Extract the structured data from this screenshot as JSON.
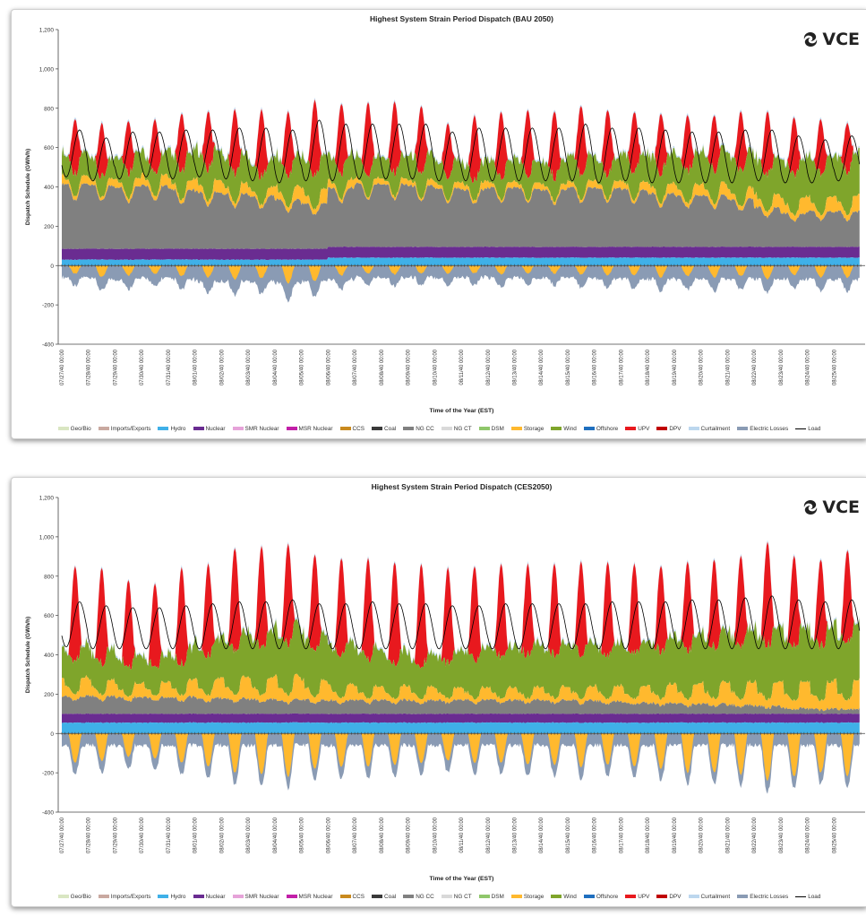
{
  "colors": {
    "Geo/Bio": "#d9e6c2",
    "Imports/Exports": "#c9a9a0",
    "Hydro": "#3fb0e8",
    "Nuclear": "#6a2c91",
    "SMR Nuclear": "#e6a3d9",
    "MSR Nuclear": "#c21fa8",
    "CCS": "#c98a1e",
    "Coal": "#3a3a3a",
    "NG CC": "#808080",
    "NG CT": "#d9d9d9",
    "DSM": "#8fc76b",
    "Storage": "#ffb92e",
    "Wind": "#7fa52b",
    "Offshore": "#1f6fbf",
    "UPV": "#e8191e",
    "DPV": "#c00000",
    "Curtailment": "#bcd7ee",
    "Electric Losses": "#8a9bb4",
    "Load": "#000000"
  },
  "logo": {
    "text": "VCE",
    "icon": "swirl-icon"
  },
  "chart_data": [
    {
      "type": "area",
      "title": "Highest System Strain Period Dispatch (BAU 2050)",
      "xlabel": "Time of the Year (EST)",
      "ylabel": "Dispatch Schedule (GWh/h)",
      "ylim": [
        -400,
        1200
      ],
      "yticks": [
        "-400",
        "-200",
        "0",
        "200",
        "400",
        "600",
        "800",
        "1,000",
        "1,200"
      ],
      "x": [
        "07/27/40 00:00",
        "07/28/40 00:00",
        "07/29/40 00:00",
        "07/30/40 00:00",
        "07/31/40 00:00",
        "08/01/40 00:00",
        "08/02/40 00:00",
        "08/03/40 00:00",
        "08/04/40 00:00",
        "08/05/40 00:00",
        "08/06/40 00:00",
        "08/07/40 00:00",
        "08/08/40 00:00",
        "08/09/40 00:00",
        "08/10/40 00:00",
        "08/11/40 00:00",
        "08/12/40 00:00",
        "08/13/40 00:00",
        "08/14/40 00:00",
        "08/15/40 00:00",
        "08/16/40 00:00",
        "08/17/40 00:00",
        "08/18/40 00:00",
        "08/19/40 00:00",
        "08/20/40 00:00",
        "08/21/40 00:00",
        "08/22/40 00:00",
        "08/23/40 00:00",
        "08/24/40 00:00",
        "08/25/40 00:00"
      ],
      "daily": {
        "hydro": [
          30,
          30,
          30,
          30,
          30,
          30,
          30,
          30,
          30,
          30,
          40,
          40,
          40,
          40,
          40,
          40,
          40,
          40,
          40,
          40,
          40,
          40,
          40,
          40,
          40,
          40,
          40,
          40,
          40,
          40
        ],
        "nuclear": [
          55,
          55,
          55,
          55,
          55,
          55,
          55,
          55,
          55,
          55,
          55,
          55,
          55,
          55,
          55,
          55,
          55,
          55,
          55,
          55,
          55,
          55,
          55,
          55,
          55,
          55,
          55,
          55,
          55,
          55
        ],
        "ngcc": [
          330,
          320,
          315,
          320,
          300,
          290,
          280,
          270,
          250,
          230,
          300,
          320,
          320,
          310,
          300,
          290,
          300,
          300,
          290,
          300,
          300,
          290,
          270,
          260,
          260,
          240,
          200,
          170,
          180,
          180
        ],
        "wind": [
          120,
          100,
          130,
          110,
          140,
          160,
          150,
          140,
          160,
          170,
          130,
          110,
          120,
          130,
          120,
          100,
          110,
          120,
          120,
          130,
          120,
          140,
          150,
          160,
          170,
          180,
          190,
          200,
          210,
          220
        ],
        "storage_low": [
          30,
          25,
          30,
          40,
          35,
          45,
          40,
          30,
          50,
          55,
          30,
          20,
          20,
          20,
          20,
          25,
          20,
          20,
          20,
          25,
          25,
          30,
          35,
          40,
          45,
          40,
          50,
          60,
          55,
          60
        ],
        "solar_peak": [
          740,
          720,
          730,
          740,
          770,
          780,
          790,
          790,
          780,
          840,
          820,
          830,
          830,
          810,
          720,
          760,
          780,
          790,
          780,
          810,
          790,
          780,
          770,
          760,
          760,
          780,
          780,
          750,
          740,
          720
        ],
        "load_peak": [
          690,
          650,
          680,
          680,
          690,
          690,
          700,
          700,
          690,
          740,
          720,
          720,
          720,
          720,
          680,
          700,
          700,
          700,
          700,
          720,
          700,
          700,
          690,
          680,
          680,
          690,
          690,
          660,
          640,
          660
        ],
        "load_min": [
          450,
          430,
          440,
          450,
          440,
          450,
          440,
          430,
          420,
          430,
          430,
          440,
          440,
          440,
          430,
          430,
          430,
          430,
          430,
          430,
          420,
          430,
          420,
          420,
          420,
          420,
          430,
          420,
          420,
          430
        ],
        "storage_charge": [
          -40,
          -60,
          -50,
          -45,
          -55,
          -60,
          -70,
          -65,
          -90,
          -80,
          -50,
          -40,
          -45,
          -40,
          -40,
          -40,
          -45,
          -40,
          -40,
          -45,
          -50,
          -50,
          -60,
          -55,
          -60,
          -55,
          -70,
          -50,
          -60,
          -60
        ],
        "losses": [
          -60,
          -70,
          -70,
          -65,
          -70,
          -80,
          -80,
          -80,
          -90,
          -80,
          -70,
          -60,
          -60,
          -60,
          -60,
          -60,
          -65,
          -60,
          -60,
          -65,
          -65,
          -70,
          -70,
          -70,
          -70,
          -70,
          -70,
          -70,
          -70,
          -70
        ]
      }
    },
    {
      "type": "area",
      "title": "Highest System Strain Period Dispatch (CES2050)",
      "xlabel": "Time of the Year (EST)",
      "ylabel": "Dispatch Schedule (GWh/h)",
      "ylim": [
        -400,
        1200
      ],
      "yticks": [
        "-400",
        "-200",
        "0",
        "200",
        "400",
        "600",
        "800",
        "1,000",
        "1,200"
      ],
      "x": [
        "07/27/40 00:00",
        "07/28/40 00:00",
        "07/29/40 00:00",
        "07/30/40 00:00",
        "07/31/40 00:00",
        "08/01/40 00:00",
        "08/02/40 00:00",
        "08/03/40 00:00",
        "08/04/40 00:00",
        "08/05/40 00:00",
        "08/06/40 00:00",
        "08/07/40 00:00",
        "08/08/40 00:00",
        "08/09/40 00:00",
        "08/10/40 00:00",
        "08/11/40 00:00",
        "08/12/40 00:00",
        "08/13/40 00:00",
        "08/14/40 00:00",
        "08/15/40 00:00",
        "08/16/40 00:00",
        "08/17/40 00:00",
        "08/18/40 00:00",
        "08/19/40 00:00",
        "08/20/40 00:00",
        "08/21/40 00:00",
        "08/22/40 00:00",
        "08/23/40 00:00",
        "08/24/40 00:00",
        "08/25/40 00:00"
      ],
      "daily": {
        "hydro": [
          55,
          55,
          55,
          55,
          55,
          55,
          55,
          55,
          55,
          55,
          55,
          55,
          55,
          55,
          55,
          55,
          55,
          55,
          55,
          55,
          55,
          55,
          55,
          55,
          55,
          55,
          55,
          55,
          55,
          55
        ],
        "nuclear": [
          45,
          45,
          45,
          45,
          45,
          45,
          45,
          45,
          45,
          45,
          45,
          45,
          45,
          45,
          45,
          45,
          45,
          45,
          45,
          45,
          45,
          45,
          45,
          45,
          45,
          45,
          45,
          45,
          45,
          45
        ],
        "ngcc": [
          90,
          90,
          85,
          85,
          85,
          80,
          80,
          75,
          70,
          70,
          70,
          70,
          70,
          70,
          70,
          70,
          70,
          70,
          70,
          70,
          65,
          60,
          55,
          50,
          50,
          45,
          40,
          30,
          25,
          25
        ],
        "wind": [
          170,
          160,
          150,
          140,
          160,
          200,
          230,
          240,
          260,
          240,
          220,
          200,
          180,
          170,
          180,
          200,
          210,
          220,
          220,
          230,
          220,
          230,
          240,
          250,
          260,
          270,
          280,
          280,
          280,
          290
        ],
        "storage_low": [
          70,
          60,
          50,
          55,
          60,
          70,
          80,
          80,
          90,
          75,
          60,
          50,
          50,
          50,
          45,
          45,
          45,
          45,
          50,
          50,
          55,
          60,
          70,
          75,
          80,
          85,
          90,
          100,
          100,
          110
        ],
        "solar_peak": [
          850,
          840,
          780,
          760,
          840,
          860,
          940,
          950,
          960,
          910,
          890,
          890,
          870,
          860,
          840,
          850,
          860,
          860,
          860,
          870,
          870,
          860,
          850,
          870,
          880,
          900,
          970,
          900,
          880,
          930
        ],
        "load_peak": [
          670,
          650,
          640,
          640,
          650,
          660,
          670,
          670,
          680,
          660,
          660,
          670,
          660,
          660,
          650,
          650,
          660,
          660,
          660,
          660,
          670,
          670,
          670,
          680,
          680,
          690,
          700,
          680,
          670,
          680
        ],
        "load_min": [
          440,
          430,
          430,
          430,
          430,
          430,
          430,
          430,
          430,
          430,
          430,
          430,
          430,
          430,
          430,
          430,
          430,
          430,
          430,
          430,
          430,
          430,
          430,
          430,
          430,
          430,
          430,
          430,
          430,
          430
        ],
        "storage_charge": [
          -150,
          -140,
          -120,
          -130,
          -150,
          -170,
          -200,
          -210,
          -220,
          -180,
          -170,
          -170,
          -160,
          -150,
          -140,
          -150,
          -150,
          -160,
          -160,
          -170,
          -160,
          -170,
          -180,
          -200,
          -200,
          -210,
          -240,
          -220,
          -200,
          -220
        ],
        "losses": [
          -60,
          -60,
          -60,
          -60,
          -60,
          -60,
          -60,
          -60,
          -60,
          -60,
          -60,
          -60,
          -60,
          -60,
          -60,
          -60,
          -60,
          -60,
          -60,
          -60,
          -60,
          -60,
          -60,
          -60,
          -60,
          -60,
          -60,
          -60,
          -60,
          -60
        ]
      }
    }
  ],
  "legend": [
    "Geo/Bio",
    "Imports/Exports",
    "Hydro",
    "Nuclear",
    "SMR Nuclear",
    "MSR Nuclear",
    "CCS",
    "Coal",
    "NG CC",
    "NG CT",
    "DSM",
    "Storage",
    "Wind",
    "Offshore",
    "UPV",
    "DPV",
    "Curtailment",
    "Electric Losses",
    "Load"
  ]
}
